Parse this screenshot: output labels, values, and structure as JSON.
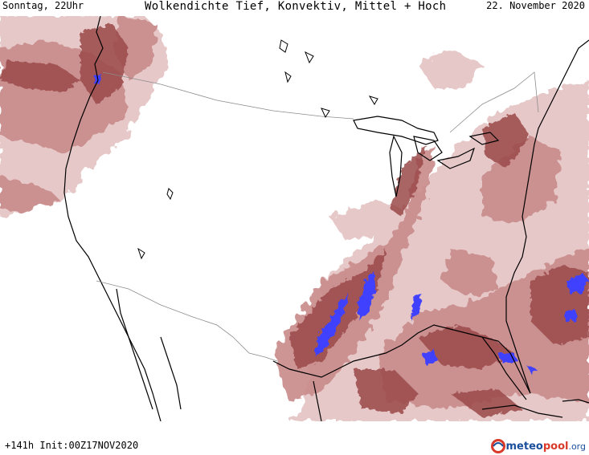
{
  "header": {
    "left": "Sonntag, 22Uhr",
    "center": "Wolkendichte  Tief, Konvektiv, Mittel + Hoch",
    "right": "22. November 2020"
  },
  "footer": {
    "run_info": "+141h Init:00Z17NOV2020",
    "logo_text_a": "meteo",
    "logo_text_b": "pool",
    "logo_text_c": ".org"
  },
  "colors": {
    "cloud_light": "#e6c6c6",
    "cloud_mid": "#c98a8a",
    "cloud_dark": "#9b4a4a",
    "convective": "#4040ff",
    "coastline": "#000000",
    "border": "#8c8c8c"
  }
}
